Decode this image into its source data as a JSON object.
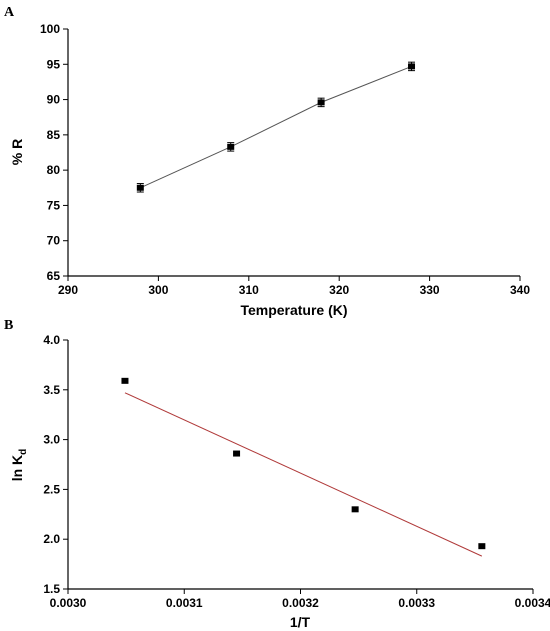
{
  "chart_data": [
    {
      "panel": "A",
      "type": "line",
      "title": "",
      "xlabel": "Temperature (K)",
      "ylabel": "% R",
      "xlim": [
        290,
        340
      ],
      "ylim": [
        65,
        100
      ],
      "xticks": [
        "290",
        "300",
        "310",
        "320",
        "330",
        "340"
      ],
      "yticks": [
        "65",
        "70",
        "75",
        "80",
        "85",
        "90",
        "95",
        "100"
      ],
      "grid": false,
      "legend": "none",
      "series": [
        {
          "x": [
            298,
            308,
            318,
            328
          ],
          "y": [
            77.5,
            83.3,
            89.6,
            94.7
          ],
          "yerr": [
            0.6,
            0.6,
            0.6,
            0.6
          ],
          "marker": "square",
          "color": "#000000",
          "line_color": "#555555"
        }
      ]
    },
    {
      "panel": "B",
      "type": "scatter",
      "title": "",
      "xlabel": "1/T",
      "ylabel_main": "ln K",
      "ylabel_sub": "d",
      "xlim": [
        0.003,
        0.0034
      ],
      "ylim": [
        1.5,
        4.0
      ],
      "xticks": [
        "0.0030",
        "0.0031",
        "0.0032",
        "0.0033",
        "0.0034"
      ],
      "yticks": [
        "1.5",
        "2.0",
        "2.5",
        "3.0",
        "3.5",
        "4.0"
      ],
      "grid": false,
      "legend": "none",
      "series": [
        {
          "x": [
            0.003049,
            0.003145,
            0.003247,
            0.003356
          ],
          "y": [
            3.59,
            2.86,
            2.3,
            1.93
          ],
          "marker": "square",
          "color": "#000000"
        }
      ],
      "fit_line": {
        "x": [
          0.003049,
          0.003356
        ],
        "y": [
          3.47,
          1.83
        ],
        "color": "#b03a3a"
      }
    }
  ]
}
